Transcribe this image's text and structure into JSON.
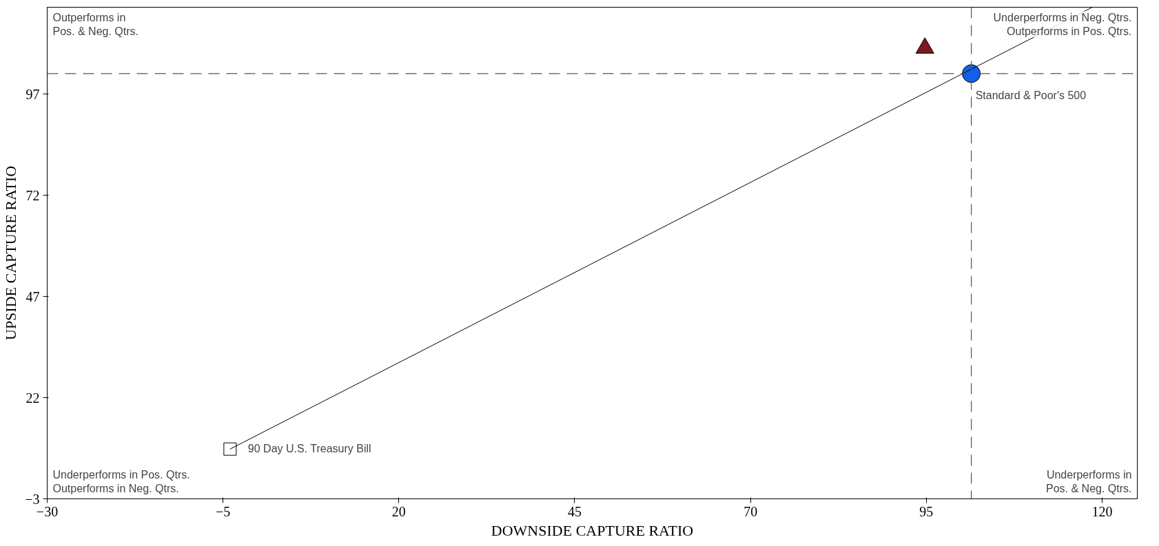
{
  "chart_data": {
    "type": "scatter",
    "xlabel": "DOWNSIDE CAPTURE RATIO",
    "ylabel": "UPSIDE CAPTURE RATIO",
    "xlim": [
      -30,
      125
    ],
    "ylim": [
      -3,
      118.5
    ],
    "xticks": [
      -30,
      -5,
      20,
      45,
      70,
      95,
      120
    ],
    "yticks": [
      -3,
      22,
      47,
      72,
      97
    ],
    "grid": false,
    "series": [
      {
        "type": "line",
        "color": "#000000",
        "x": [
          -4,
          118.6
        ],
        "values": [
          9.3,
          118.5
        ],
        "marker": "none"
      },
      {
        "color": "#7b1a1f",
        "x": [
          94.8
        ],
        "values": [
          108.4
        ],
        "marker": "triangle"
      },
      {
        "name": "Standard & Poor's 500",
        "color": "#1060f0",
        "x": [
          101.4
        ],
        "values": [
          102.1
        ],
        "marker": "circle"
      },
      {
        "name": "90 Day U.S. Treasury Bill",
        "color": "#ffffff",
        "x": [
          -4
        ],
        "values": [
          9.3
        ],
        "marker": "square"
      }
    ],
    "ref_lines": [
      {
        "axis": "x",
        "value": 101.4,
        "line_style": "dashed",
        "color": "#555555"
      },
      {
        "axis": "y",
        "value": 102.1,
        "line_style": "dashed",
        "color": "#555555"
      }
    ],
    "annotations": [
      "Outperforms in\nPos. & Neg. Qtrs.",
      "Underperforms in Neg. Qtrs.\nOutperforms in Pos. Qtrs.",
      "Underperforms in Pos. Qtrs.\nOutperforms in Neg. Qtrs.",
      "Underperforms in\nPos. & Neg. Qtrs."
    ]
  }
}
